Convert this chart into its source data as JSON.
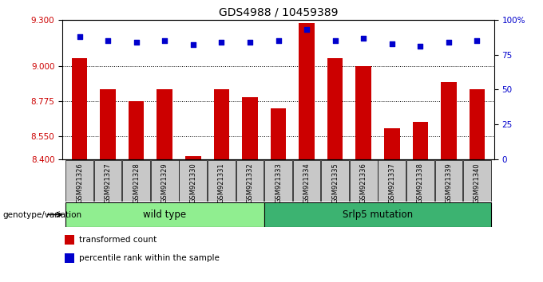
{
  "title": "GDS4988 / 10459389",
  "samples": [
    "GSM921326",
    "GSM921327",
    "GSM921328",
    "GSM921329",
    "GSM921330",
    "GSM921331",
    "GSM921332",
    "GSM921333",
    "GSM921334",
    "GSM921335",
    "GSM921336",
    "GSM921337",
    "GSM921338",
    "GSM921339",
    "GSM921340"
  ],
  "transformed_counts": [
    9.05,
    8.85,
    8.775,
    8.85,
    8.42,
    8.85,
    8.8,
    8.73,
    9.28,
    9.05,
    9.0,
    8.6,
    8.64,
    8.9,
    8.85
  ],
  "percentile_ranks": [
    88,
    85,
    84,
    85,
    82,
    84,
    84,
    85,
    93,
    85,
    87,
    83,
    81,
    84,
    85
  ],
  "groups": [
    {
      "label": "wild type",
      "start": 0,
      "end": 6,
      "color": "#90EE90"
    },
    {
      "label": "Srlp5 mutation",
      "start": 7,
      "end": 14,
      "color": "#3CB371"
    }
  ],
  "ylim_left": [
    8.4,
    9.3
  ],
  "ylim_right": [
    0,
    100
  ],
  "yticks_left": [
    8.4,
    8.55,
    8.775,
    9.0,
    9.3
  ],
  "yticks_right": [
    0,
    25,
    50,
    75,
    100
  ],
  "bar_color": "#CC0000",
  "dot_color": "#0000CC",
  "bar_bottom": 8.4,
  "grid_values": [
    9.0,
    8.775,
    8.55
  ],
  "legend_items": [
    {
      "color": "#CC0000",
      "label": "transformed count"
    },
    {
      "color": "#0000CC",
      "label": "percentile rank within the sample"
    }
  ],
  "genotype_label": "genotype/variation",
  "tick_label_bg": "#C8C8C8",
  "title_fontsize": 10,
  "axis_label_fontsize": 8,
  "tick_fontsize": 7.5,
  "bar_width": 0.55,
  "n_wild": 7,
  "n_mut": 8
}
